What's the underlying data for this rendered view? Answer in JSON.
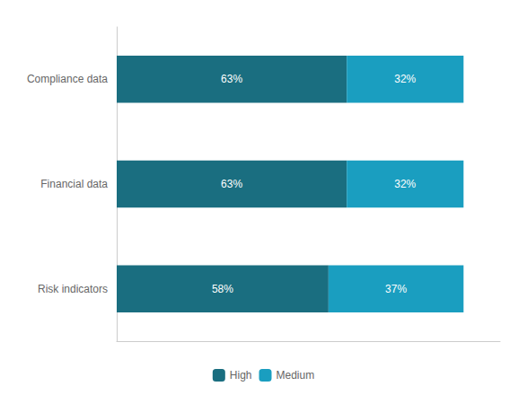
{
  "chart_data": {
    "type": "bar",
    "orientation": "horizontal",
    "stacked": true,
    "categories": [
      "Risk indicators",
      "Financial data",
      "Compliance data"
    ],
    "series": [
      {
        "name": "High",
        "color": "#1a6e80",
        "values": [
          58,
          63,
          63
        ],
        "value_labels": [
          "58%",
          "63%",
          "63%"
        ]
      },
      {
        "name": "Medium",
        "color": "#1a9ec0",
        "values": [
          37,
          32,
          32
        ],
        "value_labels": [
          "37%",
          "32%",
          "32%"
        ]
      }
    ],
    "xlim": [
      0,
      105
    ],
    "data_labels": true,
    "tick_labels": "y",
    "legend": "bottom",
    "grid": false
  }
}
